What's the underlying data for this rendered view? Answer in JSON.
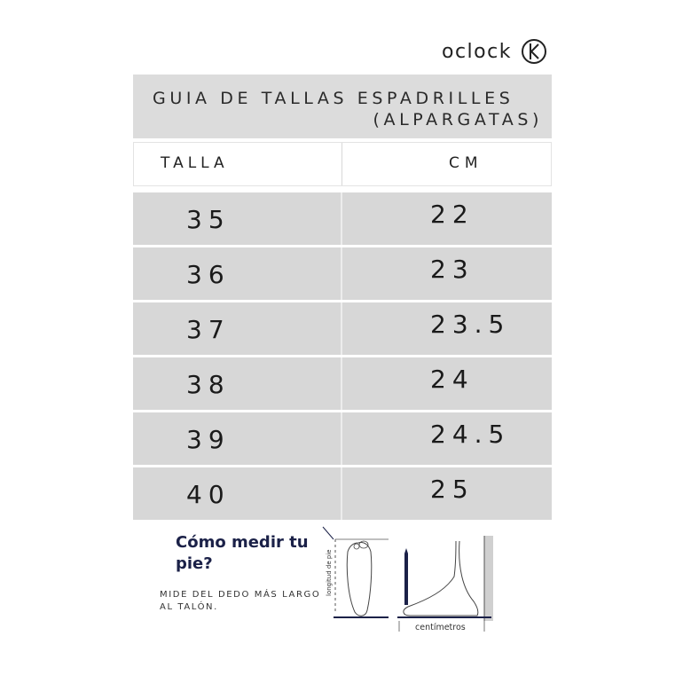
{
  "brand": {
    "name": "oclock",
    "logo_icon": "oclock-k-logo-icon"
  },
  "table": {
    "title_line1": "GUIA DE TALLAS ESPADRILLES",
    "title_line2": "(ALPARGATAS)",
    "header_size": "TALLA",
    "header_cm": "CM",
    "rows": [
      {
        "size": "35",
        "cm": "22"
      },
      {
        "size": "36",
        "cm": "23"
      },
      {
        "size": "37",
        "cm": "23.5"
      },
      {
        "size": "38",
        "cm": "24"
      },
      {
        "size": "39",
        "cm": "24.5"
      },
      {
        "size": "40",
        "cm": "25"
      }
    ]
  },
  "howto": {
    "title": "Cómo medir tu pie?",
    "description": "MIDE DEL DEDO MÁS LARGO AL TALÓN.",
    "foot_length_label": "longitud de pie",
    "centimeters_label": "centímetros"
  },
  "colors": {
    "row_gray": "#d7d7d7",
    "title_gray": "#dcdcdc",
    "navy": "#1b2148"
  }
}
